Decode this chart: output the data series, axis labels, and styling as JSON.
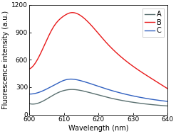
{
  "title": "",
  "xlabel": "Wavelength (nm)",
  "ylabel": "Fluorescence intensity (a.u.)",
  "xlim": [
    600,
    640
  ],
  "ylim": [
    0,
    1200
  ],
  "xticks": [
    600,
    610,
    620,
    630,
    640
  ],
  "yticks": [
    0,
    300,
    600,
    900,
    1200
  ],
  "series": {
    "A": {
      "color": "#5a7070",
      "x_pts": [
        600,
        605,
        608,
        612,
        616,
        622,
        630,
        640
      ],
      "y_pts": [
        120,
        170,
        235,
        275,
        255,
        195,
        135,
        95
      ]
    },
    "B": {
      "color": "#e8191a",
      "x_pts": [
        600,
        604,
        607,
        610,
        612,
        616,
        622,
        630,
        640
      ],
      "y_pts": [
        500,
        730,
        960,
        1080,
        1115,
        1050,
        800,
        530,
        285
      ]
    },
    "C": {
      "color": "#3060c0",
      "x_pts": [
        600,
        605,
        608,
        611,
        615,
        622,
        630,
        640
      ],
      "y_pts": [
        225,
        280,
        340,
        385,
        370,
        285,
        205,
        145
      ]
    }
  },
  "legend_loc": "upper right",
  "legend_fontsize": 7,
  "axis_fontsize": 7,
  "tick_fontsize": 6.5,
  "linewidth": 1.0,
  "figure_facecolor": "#ffffff",
  "axes_facecolor": "#ffffff",
  "figsize": [
    2.47,
    1.89
  ],
  "dpi": 100
}
